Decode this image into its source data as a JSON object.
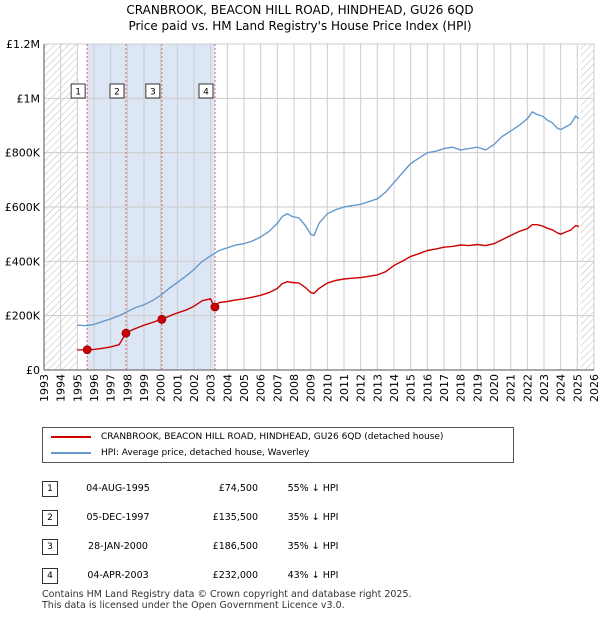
{
  "title_line1": "CRANBROOK, BEACON HILL ROAD, HINDHEAD, GU26 6QD",
  "title_line2": "Price paid vs. HM Land Registry's House Price Index (HPI)",
  "colors": {
    "property": "#cc0000",
    "hpi": "#6699cc",
    "shade": "#dde6f5",
    "grid": "#cccccc"
  },
  "legend": {
    "property": "CRANBROOK, BEACON HILL ROAD, HINDHEAD, GU26 6QD (detached house)",
    "hpi": "HPI: Average price, detached house, Waverley"
  },
  "chart_data": {
    "type": "line",
    "title": "Price paid vs. HM Land Registry's House Price Index (HPI)",
    "xlabel": "",
    "ylabel": "",
    "xlim": [
      1993,
      2026
    ],
    "ylim": [
      0,
      1200000
    ],
    "y_ticks": [
      0,
      200000,
      400000,
      600000,
      800000,
      1000000,
      1200000
    ],
    "y_tick_labels": [
      "£0",
      "£200K",
      "£400K",
      "£600K",
      "£800K",
      "£1M",
      "£1.2M"
    ],
    "x_ticks": [
      1993,
      1994,
      1995,
      1996,
      1997,
      1998,
      1999,
      2000,
      2001,
      2002,
      2003,
      2004,
      2005,
      2006,
      2007,
      2008,
      2009,
      2010,
      2011,
      2012,
      2013,
      2014,
      2015,
      2016,
      2017,
      2018,
      2019,
      2020,
      2021,
      2022,
      2023,
      2024,
      2025,
      2026
    ],
    "hatched_regions": [
      [
        1993,
        1995.0
      ],
      [
        2025.2,
        2026
      ]
    ],
    "shaded_spans": [
      [
        1997.93,
        2000.08
      ],
      [
        2003.26,
        2003.26
      ]
    ],
    "series": [
      {
        "name": "HPI: Average price, detached house, Waverley",
        "color": "#6699cc",
        "x": [
          1995.0,
          1995.5,
          1996.0,
          1996.5,
          1997.0,
          1997.5,
          1998.0,
          1998.5,
          1999.0,
          1999.5,
          2000.0,
          2000.5,
          2001.0,
          2001.5,
          2002.0,
          2002.5,
          2003.0,
          2003.5,
          2004.0,
          2004.5,
          2005.0,
          2005.5,
          2006.0,
          2006.5,
          2007.0,
          2007.3,
          2007.6,
          2007.9,
          2008.3,
          2008.7,
          2009.0,
          2009.2,
          2009.5,
          2010.0,
          2010.5,
          2011.0,
          2011.5,
          2012.0,
          2012.5,
          2013.0,
          2013.5,
          2014.0,
          2014.5,
          2015.0,
          2015.5,
          2016.0,
          2016.5,
          2017.0,
          2017.5,
          2018.0,
          2018.5,
          2019.0,
          2019.5,
          2020.0,
          2020.5,
          2021.0,
          2021.5,
          2022.0,
          2022.3,
          2022.6,
          2022.9,
          2023.2,
          2023.5,
          2023.8,
          2024.0,
          2024.3,
          2024.6,
          2024.9,
          2025.1
        ],
        "values": [
          165000,
          163000,
          168000,
          178000,
          188000,
          200000,
          215000,
          230000,
          240000,
          255000,
          275000,
          300000,
          322000,
          345000,
          370000,
          400000,
          420000,
          440000,
          450000,
          460000,
          465000,
          475000,
          490000,
          510000,
          540000,
          565000,
          575000,
          565000,
          560000,
          530000,
          500000,
          495000,
          540000,
          575000,
          590000,
          600000,
          605000,
          610000,
          620000,
          630000,
          655000,
          690000,
          725000,
          760000,
          780000,
          800000,
          805000,
          815000,
          820000,
          810000,
          815000,
          820000,
          810000,
          830000,
          860000,
          880000,
          900000,
          925000,
          950000,
          940000,
          935000,
          920000,
          910000,
          890000,
          885000,
          895000,
          905000,
          935000,
          925000
        ]
      },
      {
        "name": "CRANBROOK, BEACON HILL ROAD, HINDHEAD, GU26 6QD (detached house)",
        "color": "#cc0000",
        "x": [
          1995.0,
          1995.59,
          1996.0,
          1996.5,
          1997.0,
          1997.5,
          1997.92,
          1998.3,
          1998.7,
          1999.0,
          1999.5,
          2000.07,
          2000.5,
          2001.0,
          2001.5,
          2002.0,
          2002.5,
          2003.0,
          2003.15,
          2003.26,
          2003.5,
          2004.0,
          2004.5,
          2005.0,
          2005.5,
          2006.0,
          2006.5,
          2007.0,
          2007.3,
          2007.6,
          2007.9,
          2008.3,
          2008.7,
          2009.0,
          2009.2,
          2009.5,
          2010.0,
          2010.5,
          2011.0,
          2011.5,
          2012.0,
          2012.5,
          2013.0,
          2013.5,
          2014.0,
          2014.5,
          2015.0,
          2015.5,
          2016.0,
          2016.5,
          2017.0,
          2017.5,
          2018.0,
          2018.5,
          2019.0,
          2019.5,
          2020.0,
          2020.5,
          2021.0,
          2021.5,
          2022.0,
          2022.3,
          2022.6,
          2022.9,
          2023.2,
          2023.5,
          2023.8,
          2024.0,
          2024.3,
          2024.6,
          2024.9,
          2025.1
        ],
        "values": [
          74000,
          74500,
          76000,
          80000,
          85000,
          93000,
          135500,
          148000,
          158000,
          165000,
          175000,
          186500,
          198000,
          210000,
          220000,
          235000,
          255000,
          262000,
          240000,
          232000,
          248000,
          252000,
          258000,
          262000,
          268000,
          275000,
          285000,
          300000,
          318000,
          325000,
          322000,
          320000,
          303000,
          285000,
          282000,
          300000,
          320000,
          330000,
          335000,
          338000,
          340000,
          345000,
          350000,
          362000,
          385000,
          400000,
          418000,
          428000,
          440000,
          445000,
          452000,
          455000,
          460000,
          458000,
          462000,
          458000,
          465000,
          480000,
          495000,
          510000,
          520000,
          535000,
          535000,
          530000,
          522000,
          516000,
          505000,
          500000,
          508000,
          515000,
          532000,
          528000
        ]
      }
    ],
    "sales": [
      {
        "id": "1",
        "x": 1995.59,
        "price": 74500
      },
      {
        "id": "2",
        "x": 1997.92,
        "price": 135500
      },
      {
        "id": "3",
        "x": 2000.07,
        "price": 186500
      },
      {
        "id": "4",
        "x": 2003.26,
        "price": 232000
      }
    ]
  },
  "sales_table": [
    {
      "id": "1",
      "date": "04-AUG-1995",
      "price": "£74,500",
      "hpi": "55% ↓ HPI"
    },
    {
      "id": "2",
      "date": "05-DEC-1997",
      "price": "£135,500",
      "hpi": "35% ↓ HPI"
    },
    {
      "id": "3",
      "date": "28-JAN-2000",
      "price": "£186,500",
      "hpi": "35% ↓ HPI"
    },
    {
      "id": "4",
      "date": "04-APR-2003",
      "price": "£232,000",
      "hpi": "43% ↓ HPI"
    }
  ],
  "footer_line1": "Contains HM Land Registry data © Crown copyright and database right 2025.",
  "footer_line2": "This data is licensed under the Open Government Licence v3.0."
}
